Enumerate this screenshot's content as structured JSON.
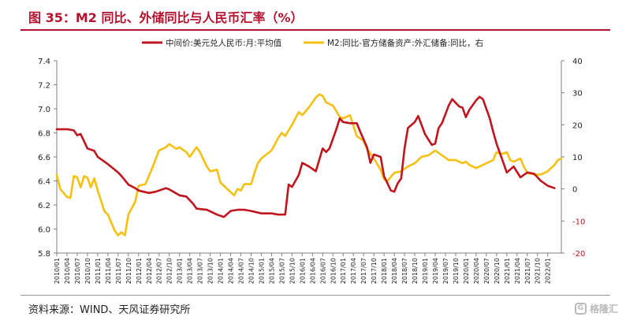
{
  "header": {
    "title": "图 35：M2 同比、外储同比与人民币汇率（%）"
  },
  "footer": {
    "source": "资料来源：WIND、天风证券研究所",
    "watermark": "格隆汇"
  },
  "chart_data": {
    "type": "line",
    "legend_position": "top",
    "grid": false,
    "y_left": {
      "range": [
        5.8,
        7.4
      ],
      "ticks": [
        "5.8",
        "6.0",
        "6.2",
        "6.4",
        "6.6",
        "6.8",
        "7.0",
        "7.2",
        "7.4"
      ]
    },
    "y_right": {
      "range": [
        -20,
        40
      ],
      "ticks": [
        "-20",
        "-10",
        "0",
        "10",
        "20",
        "30",
        "40"
      ]
    },
    "x_ticks": [
      "2010/01",
      "2010/04",
      "2010/07",
      "2010/10",
      "2011/01",
      "2011/04",
      "2011/07",
      "2011/10",
      "2012/01",
      "2012/04",
      "2012/07",
      "2012/10",
      "2013/01",
      "2013/04",
      "2013/07",
      "2013/10",
      "2014/01",
      "2014/04",
      "2014/07",
      "2014/10",
      "2015/01",
      "2015/04",
      "2015/07",
      "2015/10",
      "2016/01",
      "2016/04",
      "2016/07",
      "2016/10",
      "2017/01",
      "2017/04",
      "2017/07",
      "2017/10",
      "2018/01",
      "2018/04",
      "2018/07",
      "2018/10",
      "2019/01",
      "2019/04",
      "2019/07",
      "2019/10",
      "2020/01",
      "2020/04",
      "2020/07",
      "2020/10",
      "2021/01",
      "2021/04",
      "2021/07",
      "2021/10",
      "2022/01"
    ],
    "series": [
      {
        "name": "中间价:美元兑人民币:月:平均值",
        "axis": "left",
        "color": "#c0141e",
        "points": [
          [
            "2010/01",
            6.83
          ],
          [
            "2010/04",
            6.83
          ],
          [
            "2010/06",
            6.82
          ],
          [
            "2010/07",
            6.78
          ],
          [
            "2010/08",
            6.79
          ],
          [
            "2010/10",
            6.67
          ],
          [
            "2010/12",
            6.65
          ],
          [
            "2011/01",
            6.6
          ],
          [
            "2011/04",
            6.54
          ],
          [
            "2011/07",
            6.47
          ],
          [
            "2011/08",
            6.44
          ],
          [
            "2011/10",
            6.37
          ],
          [
            "2011/12",
            6.34
          ],
          [
            "2012/01",
            6.32
          ],
          [
            "2012/04",
            6.3
          ],
          [
            "2012/06",
            6.31
          ],
          [
            "2012/09",
            6.34
          ],
          [
            "2012/10",
            6.33
          ],
          [
            "2013/01",
            6.28
          ],
          [
            "2013/03",
            6.27
          ],
          [
            "2013/05",
            6.21
          ],
          [
            "2013/06",
            6.17
          ],
          [
            "2013/09",
            6.16
          ],
          [
            "2013/12",
            6.12
          ],
          [
            "2014/01",
            6.11
          ],
          [
            "2014/02",
            6.1
          ],
          [
            "2014/04",
            6.15
          ],
          [
            "2014/06",
            6.16
          ],
          [
            "2014/08",
            6.16
          ],
          [
            "2014/10",
            6.15
          ],
          [
            "2015/01",
            6.13
          ],
          [
            "2015/04",
            6.13
          ],
          [
            "2015/06",
            6.12
          ],
          [
            "2015/08",
            6.12
          ],
          [
            "2015/09",
            6.37
          ],
          [
            "2015/10",
            6.35
          ],
          [
            "2015/12",
            6.45
          ],
          [
            "2016/01",
            6.55
          ],
          [
            "2016/03",
            6.52
          ],
          [
            "2016/05",
            6.48
          ],
          [
            "2016/07",
            6.67
          ],
          [
            "2016/08",
            6.64
          ],
          [
            "2016/09",
            6.67
          ],
          [
            "2016/11",
            6.83
          ],
          [
            "2016/12",
            6.92
          ],
          [
            "2017/01",
            6.89
          ],
          [
            "2017/03",
            6.88
          ],
          [
            "2017/05",
            6.88
          ],
          [
            "2017/06",
            6.81
          ],
          [
            "2017/08",
            6.68
          ],
          [
            "2017/09",
            6.55
          ],
          [
            "2017/10",
            6.62
          ],
          [
            "2017/12",
            6.6
          ],
          [
            "2018/01",
            6.44
          ],
          [
            "2018/03",
            6.32
          ],
          [
            "2018/04",
            6.31
          ],
          [
            "2018/05",
            6.38
          ],
          [
            "2018/06",
            6.42
          ],
          [
            "2018/07",
            6.67
          ],
          [
            "2018/08",
            6.84
          ],
          [
            "2018/10",
            6.89
          ],
          [
            "2018/11",
            6.94
          ],
          [
            "2019/01",
            6.79
          ],
          [
            "2019/03",
            6.7
          ],
          [
            "2019/04",
            6.71
          ],
          [
            "2019/05",
            6.84
          ],
          [
            "2019/06",
            6.88
          ],
          [
            "2019/08",
            7.03
          ],
          [
            "2019/09",
            7.08
          ],
          [
            "2019/11",
            7.02
          ],
          [
            "2019/12",
            7.01
          ],
          [
            "2020/01",
            6.93
          ],
          [
            "2020/02",
            6.99
          ],
          [
            "2020/04",
            7.07
          ],
          [
            "2020/05",
            7.1
          ],
          [
            "2020/06",
            7.08
          ],
          [
            "2020/08",
            6.92
          ],
          [
            "2020/09",
            6.81
          ],
          [
            "2020/10",
            6.71
          ],
          [
            "2020/12",
            6.55
          ],
          [
            "2021/01",
            6.47
          ],
          [
            "2021/03",
            6.52
          ],
          [
            "2021/05",
            6.43
          ],
          [
            "2021/07",
            6.47
          ],
          [
            "2021/09",
            6.46
          ],
          [
            "2021/11",
            6.4
          ],
          [
            "2022/01",
            6.36
          ],
          [
            "2022/03",
            6.34
          ]
        ]
      },
      {
        "name": "M2:同比-官方储备资产:外汇储备:同比，右",
        "axis": "right",
        "color": "#f5c00f",
        "points": [
          [
            "2010/01",
            4.5
          ],
          [
            "2010/02",
            0.0
          ],
          [
            "2010/04",
            -2.5
          ],
          [
            "2010/05",
            -2.8
          ],
          [
            "2010/06",
            4.0
          ],
          [
            "2010/07",
            3.6
          ],
          [
            "2010/08",
            0.5
          ],
          [
            "2010/09",
            4.0
          ],
          [
            "2010/10",
            3.5
          ],
          [
            "2010/11",
            0.5
          ],
          [
            "2010/12",
            3.3
          ],
          [
            "2011/01",
            -0.5
          ],
          [
            "2011/03",
            -7.0
          ],
          [
            "2011/04",
            -8.0
          ],
          [
            "2011/06",
            -13.0
          ],
          [
            "2011/07",
            -14.5
          ],
          [
            "2011/08",
            -13.5
          ],
          [
            "2011/09",
            -14.5
          ],
          [
            "2011/10",
            -8.0
          ],
          [
            "2011/12",
            -4.0
          ],
          [
            "2012/01",
            1.0
          ],
          [
            "2012/03",
            1.5
          ],
          [
            "2012/04",
            4.0
          ],
          [
            "2012/05",
            6.5
          ],
          [
            "2012/07",
            12.0
          ],
          [
            "2012/09",
            13.0
          ],
          [
            "2012/10",
            14.0
          ],
          [
            "2012/12",
            12.5
          ],
          [
            "2013/01",
            13.0
          ],
          [
            "2013/03",
            11.5
          ],
          [
            "2013/04",
            10.0
          ],
          [
            "2013/06",
            13.0
          ],
          [
            "2013/07",
            11.5
          ],
          [
            "2013/09",
            7.0
          ],
          [
            "2013/10",
            5.5
          ],
          [
            "2013/12",
            6.0
          ],
          [
            "2014/01",
            2.0
          ],
          [
            "2014/03",
            0.0
          ],
          [
            "2014/04",
            -1.0
          ],
          [
            "2014/05",
            -2.0
          ],
          [
            "2014/06",
            0.0
          ],
          [
            "2014/07",
            -0.5
          ],
          [
            "2014/08",
            1.5
          ],
          [
            "2014/10",
            1.5
          ],
          [
            "2014/11",
            5.0
          ],
          [
            "2014/12",
            8.0
          ],
          [
            "2015/01",
            9.5
          ],
          [
            "2015/04",
            12.0
          ],
          [
            "2015/06",
            16.0
          ],
          [
            "2015/07",
            17.5
          ],
          [
            "2015/08",
            16.5
          ],
          [
            "2015/10",
            20.0
          ],
          [
            "2015/12",
            24.0
          ],
          [
            "2016/01",
            23.0
          ],
          [
            "2016/03",
            25.5
          ],
          [
            "2016/05",
            28.5
          ],
          [
            "2016/06",
            29.5
          ],
          [
            "2016/07",
            29.0
          ],
          [
            "2016/08",
            27.0
          ],
          [
            "2016/10",
            26.0
          ],
          [
            "2016/12",
            22.5
          ],
          [
            "2017/01",
            22.0
          ],
          [
            "2017/03",
            23.0
          ],
          [
            "2017/05",
            16.5
          ],
          [
            "2017/07",
            15.0
          ],
          [
            "2017/08",
            12.5
          ],
          [
            "2017/10",
            9.5
          ],
          [
            "2017/12",
            6.0
          ],
          [
            "2018/01",
            3.0
          ],
          [
            "2018/02",
            2.5
          ],
          [
            "2018/04",
            5.0
          ],
          [
            "2018/06",
            5.5
          ],
          [
            "2018/08",
            7.0
          ],
          [
            "2018/10",
            8.0
          ],
          [
            "2018/12",
            10.0
          ],
          [
            "2019/02",
            10.5
          ],
          [
            "2019/04",
            12.0
          ],
          [
            "2019/06",
            10.5
          ],
          [
            "2019/08",
            9.0
          ],
          [
            "2019/10",
            9.0
          ],
          [
            "2019/12",
            8.0
          ],
          [
            "2020/01",
            8.5
          ],
          [
            "2020/02",
            7.5
          ],
          [
            "2020/04",
            6.5
          ],
          [
            "2020/06",
            7.5
          ],
          [
            "2020/08",
            8.5
          ],
          [
            "2020/09",
            9.0
          ],
          [
            "2020/10",
            11.5
          ],
          [
            "2020/11",
            11.0
          ],
          [
            "2020/12",
            11.0
          ],
          [
            "2021/01",
            11.5
          ],
          [
            "2021/02",
            9.0
          ],
          [
            "2021/03",
            8.5
          ],
          [
            "2021/04",
            9.0
          ],
          [
            "2021/05",
            9.5
          ],
          [
            "2021/06",
            7.0
          ],
          [
            "2021/07",
            5.0
          ],
          [
            "2021/09",
            4.5
          ],
          [
            "2021/11",
            4.5
          ],
          [
            "2022/01",
            5.5
          ],
          [
            "2022/02",
            6.5
          ],
          [
            "2022/03",
            7.5
          ],
          [
            "2022/04",
            9.0
          ],
          [
            "2022/05",
            9.5
          ]
        ]
      }
    ]
  }
}
